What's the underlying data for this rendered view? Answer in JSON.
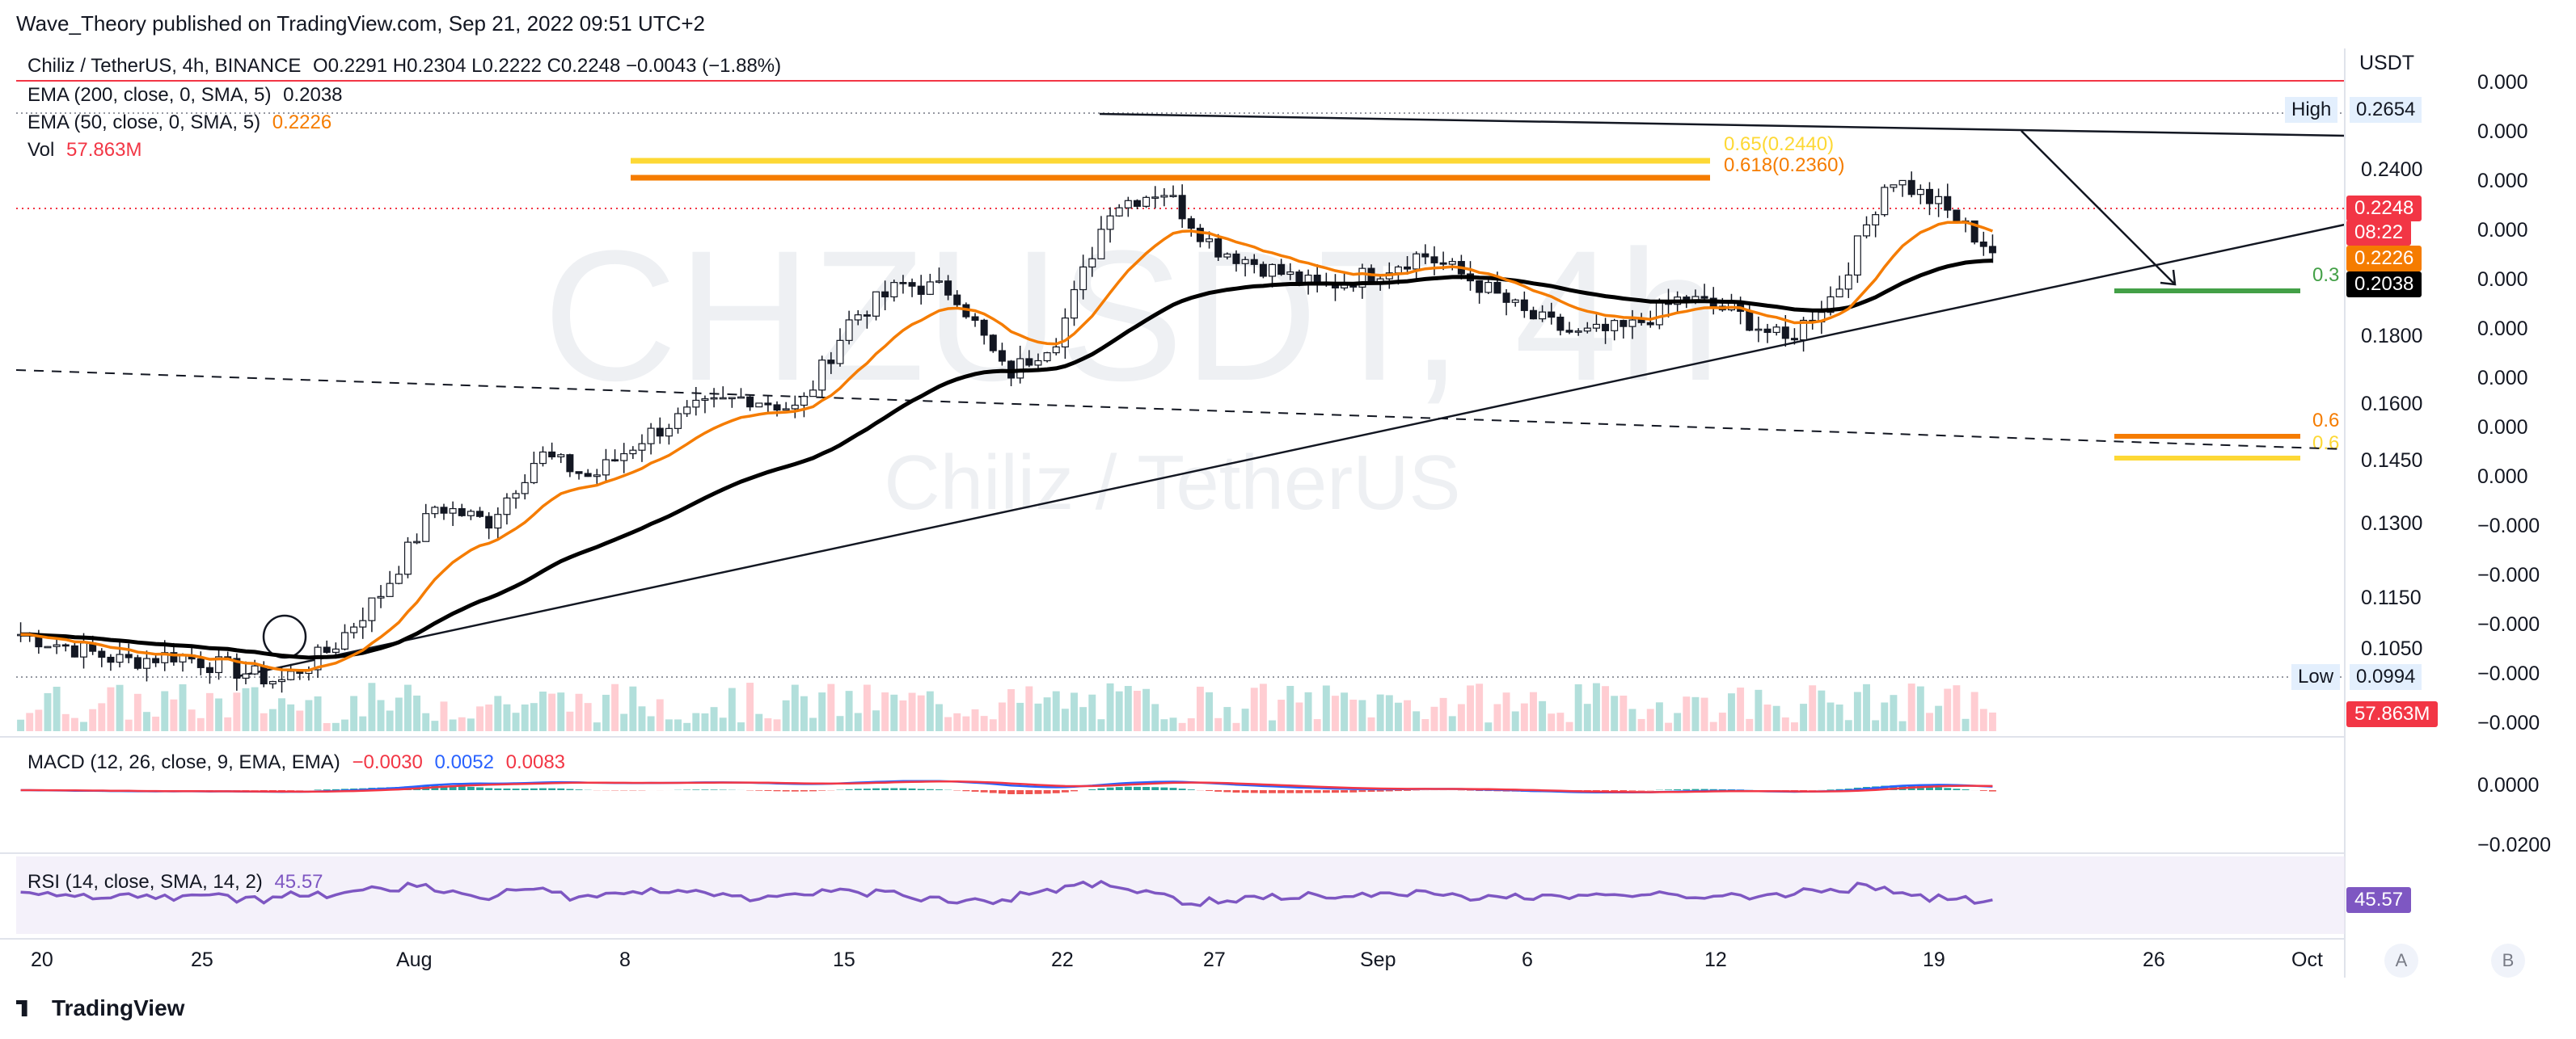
{
  "header": "Wave_Theory published on TradingView.com, Sep 21, 2022 09:51 UTC+2",
  "symbol_line": {
    "name": "Chiliz / TetherUS, 4h, BINANCE",
    "ohlc": "O0.2291 H0.2304 L0.2222 C0.2248 −0.0043 (−1.88%)"
  },
  "indicators": {
    "ema200": {
      "label": "EMA (200, close, 0, SMA, 5)",
      "value": "0.2038",
      "color": "#000000"
    },
    "ema50": {
      "label": "EMA (50, close, 0, SMA, 5)",
      "value": "0.2226",
      "color": "#f57c00"
    },
    "vol": {
      "label": "Vol",
      "value": "57.863M",
      "color": "#f23645"
    }
  },
  "watermark": {
    "ticker": "CHZUSDT, 4h",
    "name": "Chiliz / TetherUS"
  },
  "axis": {
    "currency": "USDT",
    "left_ticks": [
      "0.2400",
      "0.1800",
      "0.1600",
      "0.1450",
      "0.1300",
      "0.1150",
      "0.1050"
    ],
    "right_ticks_main": [
      "0.000",
      "0.000",
      "0.000",
      "0.000",
      "0.000",
      "0.000",
      "0.000",
      "0.000",
      "0.000",
      "−0.000",
      "−0.000",
      "−0.000",
      "−0.000",
      "−0.000"
    ],
    "macd_ticks": [
      "0.0000",
      "−0.0200"
    ],
    "high_label": "High",
    "high_value": "0.2654",
    "low_label": "Low",
    "low_value": "0.0994",
    "last_price": "0.2248",
    "countdown": "08:22",
    "ema50_tag": "0.2226",
    "ema200_tag": "0.2038",
    "vol_tag": "57.863M",
    "rsi_tag": "45.57",
    "x_ticks": [
      "20",
      "25",
      "Aug",
      "8",
      "15",
      "22",
      "27",
      "Sep",
      "6",
      "12",
      "19",
      "26",
      "Oct"
    ]
  },
  "fib": {
    "top1": "0.65(0.2440)",
    "top2": "0.618(0.2360)",
    "right_mid": "0.3",
    "right_low1": "0.6",
    "right_low2": "0.6"
  },
  "macd": {
    "label": "MACD (12, 26, close, 9, EMA, EMA)",
    "v1": "−0.0030",
    "v2": "0.0052",
    "v3": "0.0083"
  },
  "rsi": {
    "label": "RSI (14, close, SMA, 14, 2)",
    "value": "45.57"
  },
  "buttons": {
    "a": "A",
    "b": "B"
  },
  "footer": "TradingView",
  "chart_data": {
    "type": "candlestick",
    "title": "Chiliz / TetherUS, 4h, BINANCE",
    "x_ticks": [
      "20",
      "25",
      "Aug",
      "8",
      "15",
      "22",
      "27",
      "Sep",
      "6",
      "12",
      "19",
      "26",
      "Oct"
    ],
    "price_close_path": [
      0.112,
      0.108,
      0.104,
      0.106,
      0.102,
      0.098,
      0.108,
      0.125,
      0.15,
      0.145,
      0.165,
      0.158,
      0.17,
      0.178,
      0.182,
      0.178,
      0.205,
      0.215,
      0.213,
      0.188,
      0.2,
      0.238,
      0.243,
      0.226,
      0.22,
      0.214,
      0.218,
      0.224,
      0.216,
      0.206,
      0.2,
      0.202,
      0.211,
      0.207,
      0.198,
      0.213,
      0.247,
      0.238,
      0.2248
    ],
    "ema50": 0.2226,
    "ema200": 0.2038,
    "high": 0.2654,
    "low": 0.0994,
    "last": 0.2248,
    "macd": {
      "macd": -0.003,
      "signal": 0.0052,
      "hist": 0.0083
    },
    "rsi": 45.57
  }
}
